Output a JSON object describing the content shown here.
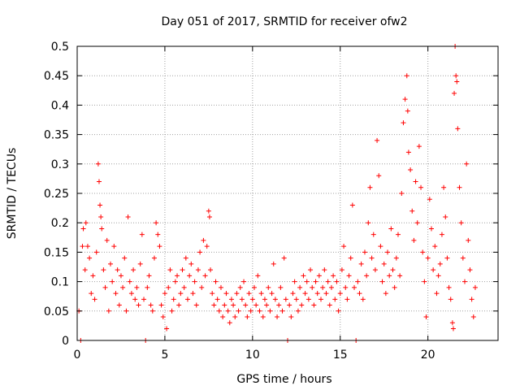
{
  "chart_data": {
    "type": "scatter",
    "title": "Day 051 of 2017, SRMTID for receiver ofw2",
    "xlabel": "GPS time / hours",
    "ylabel": "SRMTID / TECUs",
    "xlim": [
      0,
      24
    ],
    "ylim": [
      0,
      0.5
    ],
    "x_ticks": [
      0,
      5,
      10,
      15,
      20
    ],
    "y_ticks": [
      0,
      0.05,
      0.1,
      0.15,
      0.2,
      0.25,
      0.3,
      0.35,
      0.4,
      0.45,
      0.5
    ],
    "grid": true,
    "marker": "+",
    "color": "#ff0000",
    "series": [
      {
        "name": "SRMTID",
        "points": [
          [
            0.1,
            0.05
          ],
          [
            0.2,
            0.0
          ],
          [
            0.3,
            0.16
          ],
          [
            0.35,
            0.19
          ],
          [
            0.45,
            0.12
          ],
          [
            0.5,
            0.2
          ],
          [
            0.6,
            0.16
          ],
          [
            0.7,
            0.14
          ],
          [
            0.8,
            0.08
          ],
          [
            0.9,
            0.11
          ],
          [
            1.0,
            0.07
          ],
          [
            1.1,
            0.15
          ],
          [
            1.2,
            0.3
          ],
          [
            1.25,
            0.27
          ],
          [
            1.3,
            0.23
          ],
          [
            1.35,
            0.21
          ],
          [
            1.4,
            0.19
          ],
          [
            1.5,
            0.12
          ],
          [
            1.6,
            0.09
          ],
          [
            1.7,
            0.17
          ],
          [
            1.8,
            0.05
          ],
          [
            1.9,
            0.13
          ],
          [
            2.0,
            0.1
          ],
          [
            2.1,
            0.16
          ],
          [
            2.2,
            0.08
          ],
          [
            2.3,
            0.12
          ],
          [
            2.4,
            0.06
          ],
          [
            2.5,
            0.11
          ],
          [
            2.6,
            0.09
          ],
          [
            2.7,
            0.14
          ],
          [
            2.8,
            0.05
          ],
          [
            2.9,
            0.21
          ],
          [
            3.0,
            0.1
          ],
          [
            3.1,
            0.08
          ],
          [
            3.2,
            0.12
          ],
          [
            3.3,
            0.07
          ],
          [
            3.4,
            0.09
          ],
          [
            3.5,
            0.06
          ],
          [
            3.6,
            0.13
          ],
          [
            3.7,
            0.18
          ],
          [
            3.8,
            0.07
          ],
          [
            3.9,
            0.0
          ],
          [
            4.0,
            0.09
          ],
          [
            4.1,
            0.11
          ],
          [
            4.2,
            0.06
          ],
          [
            4.3,
            0.05
          ],
          [
            4.4,
            0.14
          ],
          [
            4.5,
            0.2
          ],
          [
            4.6,
            0.18
          ],
          [
            4.7,
            0.16
          ],
          [
            4.8,
            0.06
          ],
          [
            4.9,
            0.04
          ],
          [
            5.0,
            0.08
          ],
          [
            5.1,
            0.02
          ],
          [
            5.2,
            0.09
          ],
          [
            5.3,
            0.12
          ],
          [
            5.4,
            0.05
          ],
          [
            5.5,
            0.07
          ],
          [
            5.6,
            0.1
          ],
          [
            5.7,
            0.11
          ],
          [
            5.8,
            0.06
          ],
          [
            5.9,
            0.08
          ],
          [
            6.0,
            0.12
          ],
          [
            6.1,
            0.09
          ],
          [
            6.2,
            0.14
          ],
          [
            6.3,
            0.07
          ],
          [
            6.4,
            0.11
          ],
          [
            6.5,
            0.13
          ],
          [
            6.6,
            0.08
          ],
          [
            6.7,
            0.1
          ],
          [
            6.8,
            0.06
          ],
          [
            6.9,
            0.12
          ],
          [
            7.0,
            0.15
          ],
          [
            7.1,
            0.09
          ],
          [
            7.2,
            0.17
          ],
          [
            7.3,
            0.11
          ],
          [
            7.4,
            0.16
          ],
          [
            7.5,
            0.22
          ],
          [
            7.55,
            0.21
          ],
          [
            7.6,
            0.12
          ],
          [
            7.7,
            0.08
          ],
          [
            7.8,
            0.06
          ],
          [
            7.9,
            0.1
          ],
          [
            8.0,
            0.07
          ],
          [
            8.1,
            0.05
          ],
          [
            8.2,
            0.09
          ],
          [
            8.3,
            0.04
          ],
          [
            8.4,
            0.06
          ],
          [
            8.5,
            0.08
          ],
          [
            8.6,
            0.05
          ],
          [
            8.7,
            0.03
          ],
          [
            8.8,
            0.07
          ],
          [
            8.9,
            0.06
          ],
          [
            9.0,
            0.04
          ],
          [
            9.1,
            0.08
          ],
          [
            9.2,
            0.05
          ],
          [
            9.3,
            0.09
          ],
          [
            9.4,
            0.07
          ],
          [
            9.5,
            0.1
          ],
          [
            9.6,
            0.06
          ],
          [
            9.7,
            0.04
          ],
          [
            9.8,
            0.08
          ],
          [
            9.9,
            0.05
          ],
          [
            10.0,
            0.07
          ],
          [
            10.1,
            0.09
          ],
          [
            10.2,
            0.06
          ],
          [
            10.3,
            0.11
          ],
          [
            10.4,
            0.05
          ],
          [
            10.5,
            0.08
          ],
          [
            10.6,
            0.04
          ],
          [
            10.7,
            0.07
          ],
          [
            10.8,
            0.06
          ],
          [
            10.9,
            0.09
          ],
          [
            11.0,
            0.05
          ],
          [
            11.1,
            0.08
          ],
          [
            11.2,
            0.13
          ],
          [
            11.3,
            0.07
          ],
          [
            11.4,
            0.04
          ],
          [
            11.5,
            0.06
          ],
          [
            11.6,
            0.09
          ],
          [
            11.7,
            0.05
          ],
          [
            11.8,
            0.14
          ],
          [
            11.9,
            0.07
          ],
          [
            12.0,
            0.0
          ],
          [
            12.1,
            0.06
          ],
          [
            12.2,
            0.04
          ],
          [
            12.3,
            0.08
          ],
          [
            12.4,
            0.1
          ],
          [
            12.5,
            0.07
          ],
          [
            12.6,
            0.05
          ],
          [
            12.7,
            0.09
          ],
          [
            12.8,
            0.06
          ],
          [
            12.9,
            0.11
          ],
          [
            13.0,
            0.08
          ],
          [
            13.1,
            0.1
          ],
          [
            13.2,
            0.07
          ],
          [
            13.3,
            0.12
          ],
          [
            13.4,
            0.09
          ],
          [
            13.5,
            0.06
          ],
          [
            13.6,
            0.1
          ],
          [
            13.7,
            0.08
          ],
          [
            13.8,
            0.11
          ],
          [
            13.9,
            0.07
          ],
          [
            14.0,
            0.09
          ],
          [
            14.1,
            0.12
          ],
          [
            14.2,
            0.08
          ],
          [
            14.3,
            0.1
          ],
          [
            14.4,
            0.06
          ],
          [
            14.5,
            0.09
          ],
          [
            14.6,
            0.11
          ],
          [
            14.7,
            0.07
          ],
          [
            14.8,
            0.1
          ],
          [
            14.9,
            0.05
          ],
          [
            15.0,
            0.08
          ],
          [
            15.1,
            0.12
          ],
          [
            15.2,
            0.16
          ],
          [
            15.3,
            0.09
          ],
          [
            15.4,
            0.07
          ],
          [
            15.5,
            0.11
          ],
          [
            15.6,
            0.14
          ],
          [
            15.7,
            0.23
          ],
          [
            15.8,
            0.09
          ],
          [
            15.9,
            0.0
          ],
          [
            16.0,
            0.1
          ],
          [
            16.1,
            0.08
          ],
          [
            16.2,
            0.13
          ],
          [
            16.3,
            0.07
          ],
          [
            16.4,
            0.15
          ],
          [
            16.5,
            0.11
          ],
          [
            16.6,
            0.2
          ],
          [
            16.7,
            0.26
          ],
          [
            16.8,
            0.14
          ],
          [
            16.9,
            0.18
          ],
          [
            17.0,
            0.12
          ],
          [
            17.1,
            0.34
          ],
          [
            17.2,
            0.28
          ],
          [
            17.3,
            0.16
          ],
          [
            17.4,
            0.1
          ],
          [
            17.5,
            0.13
          ],
          [
            17.6,
            0.08
          ],
          [
            17.7,
            0.15
          ],
          [
            17.8,
            0.11
          ],
          [
            17.9,
            0.19
          ],
          [
            18.0,
            0.12
          ],
          [
            18.1,
            0.09
          ],
          [
            18.2,
            0.14
          ],
          [
            18.3,
            0.18
          ],
          [
            18.4,
            0.11
          ],
          [
            18.5,
            0.25
          ],
          [
            18.6,
            0.37
          ],
          [
            18.7,
            0.41
          ],
          [
            18.8,
            0.45
          ],
          [
            18.85,
            0.39
          ],
          [
            18.9,
            0.32
          ],
          [
            19.0,
            0.29
          ],
          [
            19.1,
            0.22
          ],
          [
            19.2,
            0.17
          ],
          [
            19.3,
            0.27
          ],
          [
            19.4,
            0.2
          ],
          [
            19.5,
            0.33
          ],
          [
            19.6,
            0.26
          ],
          [
            19.7,
            0.15
          ],
          [
            19.8,
            0.1
          ],
          [
            19.9,
            0.04
          ],
          [
            20.0,
            0.14
          ],
          [
            20.1,
            0.24
          ],
          [
            20.2,
            0.19
          ],
          [
            20.3,
            0.12
          ],
          [
            20.4,
            0.16
          ],
          [
            20.5,
            0.08
          ],
          [
            20.6,
            0.11
          ],
          [
            20.7,
            0.13
          ],
          [
            20.8,
            0.18
          ],
          [
            20.9,
            0.26
          ],
          [
            21.0,
            0.21
          ],
          [
            21.1,
            0.14
          ],
          [
            21.2,
            0.09
          ],
          [
            21.3,
            0.07
          ],
          [
            21.4,
            0.03
          ],
          [
            21.45,
            0.02
          ],
          [
            21.5,
            0.42
          ],
          [
            21.55,
            0.5
          ],
          [
            21.6,
            0.45
          ],
          [
            21.65,
            0.44
          ],
          [
            21.7,
            0.36
          ],
          [
            21.8,
            0.26
          ],
          [
            21.9,
            0.2
          ],
          [
            22.0,
            0.14
          ],
          [
            22.1,
            0.1
          ],
          [
            22.2,
            0.3
          ],
          [
            22.3,
            0.17
          ],
          [
            22.4,
            0.12
          ],
          [
            22.5,
            0.07
          ],
          [
            22.6,
            0.04
          ],
          [
            22.7,
            0.09
          ]
        ]
      }
    ]
  }
}
